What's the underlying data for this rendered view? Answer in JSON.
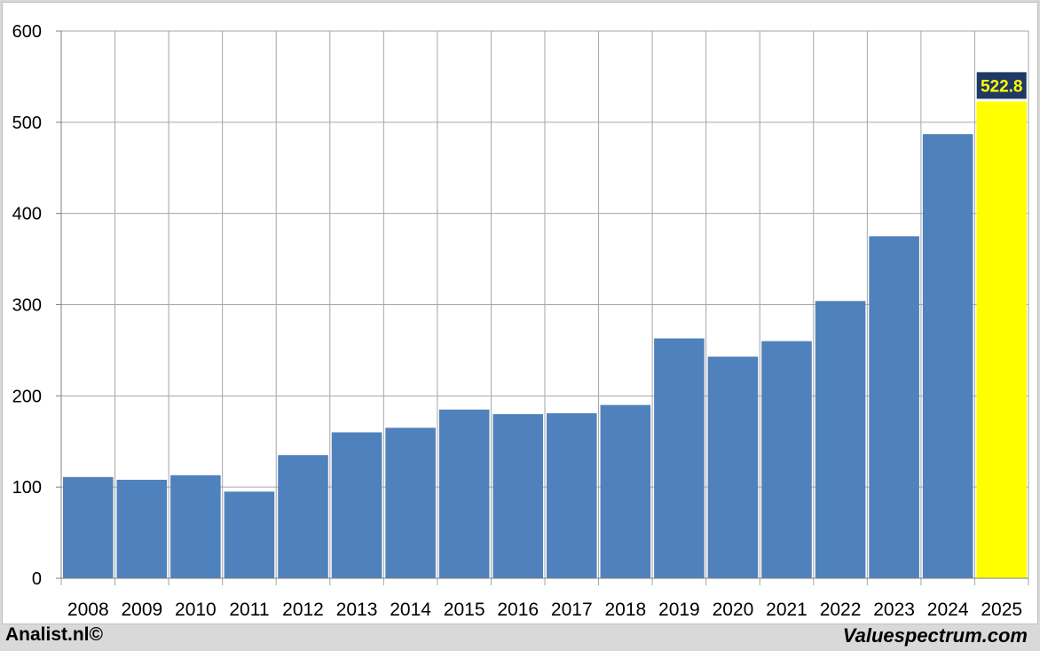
{
  "footer": {
    "left": "Analist.nl©",
    "right": "Valuespectrum.com"
  },
  "colors": {
    "bar": "#4f81bd",
    "highlight_bar": "#ffff00",
    "label_bg": "#1f3864",
    "label_text": "#ffff00",
    "grid": "#a6a6a6"
  },
  "chart_data": {
    "type": "bar",
    "title": "",
    "xlabel": "",
    "ylabel": "",
    "ylim": [
      0,
      600
    ],
    "yticks": [
      0,
      100,
      200,
      300,
      400,
      500,
      600
    ],
    "grid": true,
    "categories": [
      "2008",
      "2009",
      "2010",
      "2011",
      "2012",
      "2013",
      "2014",
      "2015",
      "2016",
      "2017",
      "2018",
      "2019",
      "2020",
      "2021",
      "2022",
      "2023",
      "2024",
      "2025"
    ],
    "values": [
      111,
      108,
      113,
      95,
      135,
      160,
      165,
      185,
      180,
      181,
      190,
      263,
      243,
      260,
      304,
      375,
      487,
      522.8
    ],
    "highlight_index": 17,
    "highlight_label": "522.8"
  }
}
